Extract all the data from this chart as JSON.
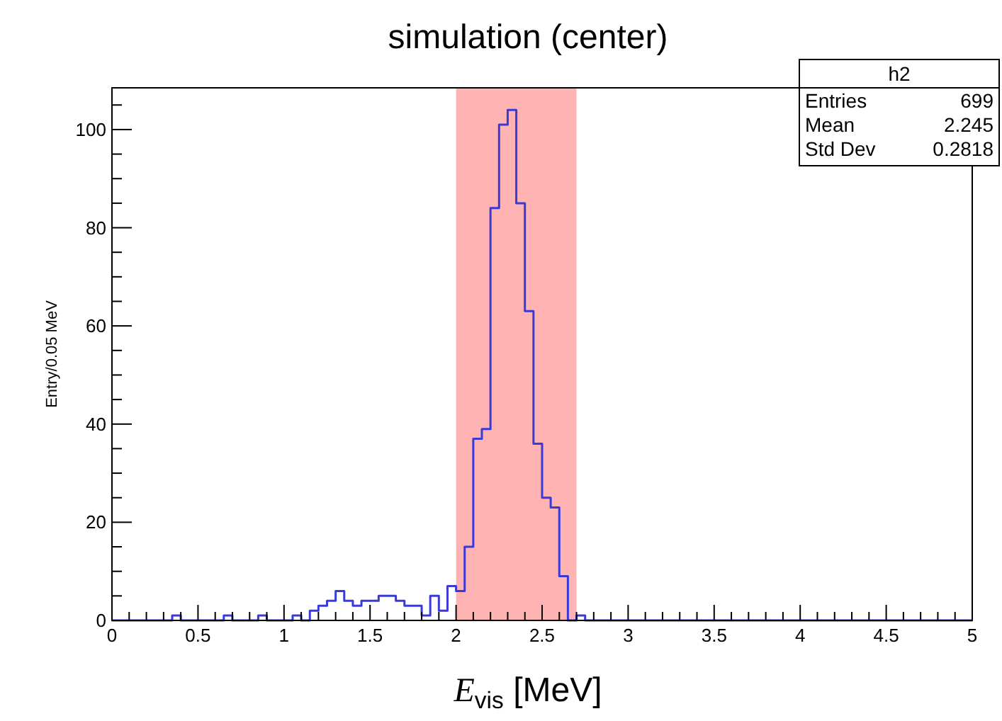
{
  "chart_data": {
    "type": "histogram",
    "title": "simulation (center)",
    "xlabel": "E$_{vis}$ [MeV]",
    "ylabel": "Entry/0.05 MeV",
    "bins": [
      0,
      0.05,
      0.1,
      0.15,
      0.2,
      0.25,
      0.3,
      0.35,
      0.4,
      0.45,
      0.5,
      0.55,
      0.6,
      0.65,
      0.7,
      0.75,
      0.8,
      0.85,
      0.9,
      0.95,
      1,
      1.05,
      1.1,
      1.15,
      1.2,
      1.25,
      1.3,
      1.35,
      1.4,
      1.45,
      1.5,
      1.55,
      1.6,
      1.65,
      1.7,
      1.75,
      1.8,
      1.85,
      1.9,
      1.95,
      2,
      2.05,
      2.1,
      2.15,
      2.2,
      2.25,
      2.3,
      2.35,
      2.4,
      2.45,
      2.5,
      2.55,
      2.6,
      2.65,
      2.7,
      2.75,
      2.8,
      2.85,
      2.9,
      2.95,
      3,
      3.05,
      3.1,
      3.15,
      3.2,
      3.25,
      3.3,
      3.35,
      3.4,
      3.45,
      3.5,
      3.55,
      3.6,
      3.65,
      3.7,
      3.75,
      3.8,
      3.85,
      3.9,
      3.95,
      4,
      4.05,
      4.1,
      4.15,
      4.2,
      4.25,
      4.3,
      4.35,
      4.4,
      4.45,
      4.5,
      4.55,
      4.6,
      4.65,
      4.7,
      4.75,
      4.8,
      4.85,
      4.9,
      4.95,
      5
    ],
    "values": [
      0,
      0,
      0,
      0,
      0,
      0,
      0,
      1,
      0,
      0,
      0,
      0,
      0,
      1,
      0,
      0,
      0,
      1,
      0,
      0,
      0,
      1,
      0,
      2,
      3,
      4,
      6,
      4,
      3,
      4,
      4,
      5,
      5,
      4,
      3,
      3,
      1,
      5,
      2,
      7,
      6,
      15,
      37,
      39,
      84,
      101,
      104,
      85,
      63,
      36,
      25,
      23,
      9,
      0,
      1,
      0,
      0,
      0,
      0,
      0,
      0,
      0,
      0,
      0,
      0,
      0,
      0,
      0,
      0,
      0,
      0,
      0,
      0,
      0,
      0,
      0,
      0,
      0,
      0,
      0,
      0,
      0,
      0,
      0,
      0,
      0,
      0,
      0,
      0,
      0,
      0,
      0,
      0,
      0,
      0,
      0,
      0,
      0,
      0,
      0
    ],
    "color": "#3a3ad8",
    "xlim": [
      0,
      5
    ],
    "ylim": [
      0,
      108.5
    ],
    "xticks": [
      0,
      {
        "value": 0.1,
        "label": null
      },
      {
        "value": 0.2,
        "label": null
      },
      {
        "value": 0.3,
        "label": null
      },
      {
        "value": 0.4,
        "label": null
      },
      0.5,
      {
        "value": 0.6,
        "label": null
      },
      {
        "value": 0.7,
        "label": null
      },
      {
        "value": 0.8,
        "label": null
      },
      {
        "value": 0.9,
        "label": null
      },
      1,
      {
        "value": 1.1,
        "label": null
      },
      {
        "value": 1.2,
        "label": null
      },
      {
        "value": 1.3,
        "label": null
      },
      {
        "value": 1.4,
        "label": null
      },
      1.5,
      {
        "value": 1.6,
        "label": null
      },
      {
        "value": 1.7,
        "label": null
      },
      {
        "value": 1.8,
        "label": null
      },
      {
        "value": 1.9,
        "label": null
      },
      2,
      {
        "value": 2.1,
        "label": null
      },
      {
        "value": 2.2,
        "label": null
      },
      {
        "value": 2.3,
        "label": null
      },
      {
        "value": 2.4,
        "label": null
      },
      2.5,
      {
        "value": 2.6,
        "label": null
      },
      {
        "value": 2.7,
        "label": null
      },
      {
        "value": 2.8,
        "label": null
      },
      {
        "value": 2.9,
        "label": null
      },
      3,
      {
        "value": 3.1,
        "label": null
      },
      {
        "value": 3.2,
        "label": null
      },
      {
        "value": 3.3,
        "label": null
      },
      {
        "value": 3.4,
        "label": null
      },
      3.5,
      {
        "value": 3.6,
        "label": null
      },
      {
        "value": 3.7,
        "label": null
      },
      {
        "value": 3.8,
        "label": null
      },
      {
        "value": 3.9,
        "label": null
      },
      4,
      {
        "value": 4.1,
        "label": null
      },
      {
        "value": 4.2,
        "label": null
      },
      {
        "value": 4.3,
        "label": null
      },
      {
        "value": 4.4,
        "label": null
      },
      4.5,
      {
        "value": 4.6,
        "label": null
      },
      {
        "value": 4.7,
        "label": null
      },
      {
        "value": 4.8,
        "label": null
      },
      {
        "value": 4.9,
        "label": null
      },
      5
    ],
    "yticks": [
      0,
      {
        "value": 5,
        "label": null
      },
      {
        "value": 10,
        "label": null
      },
      {
        "value": 15,
        "label": null
      },
      20,
      {
        "value": 25,
        "label": null
      },
      {
        "value": 30,
        "label": null
      },
      {
        "value": 35,
        "label": null
      },
      40,
      {
        "value": 45,
        "label": null
      },
      {
        "value": 50,
        "label": null
      },
      {
        "value": 55,
        "label": null
      },
      60,
      {
        "value": 65,
        "label": null
      },
      {
        "value": 70,
        "label": null
      },
      {
        "value": 75,
        "label": null
      },
      80,
      {
        "value": 85,
        "label": null
      },
      {
        "value": 90,
        "label": null
      },
      {
        "value": 95,
        "label": null
      },
      100,
      {
        "value": 105,
        "label": null
      }
    ],
    "bands": [
      {
        "axis": "x",
        "from": 2.0,
        "to": 2.7,
        "color": "#ffb3b3"
      }
    ],
    "annotations": [
      "h2",
      "Entries",
      "699",
      "Mean",
      "2.245",
      "Std Dev",
      "0.2818"
    ]
  }
}
